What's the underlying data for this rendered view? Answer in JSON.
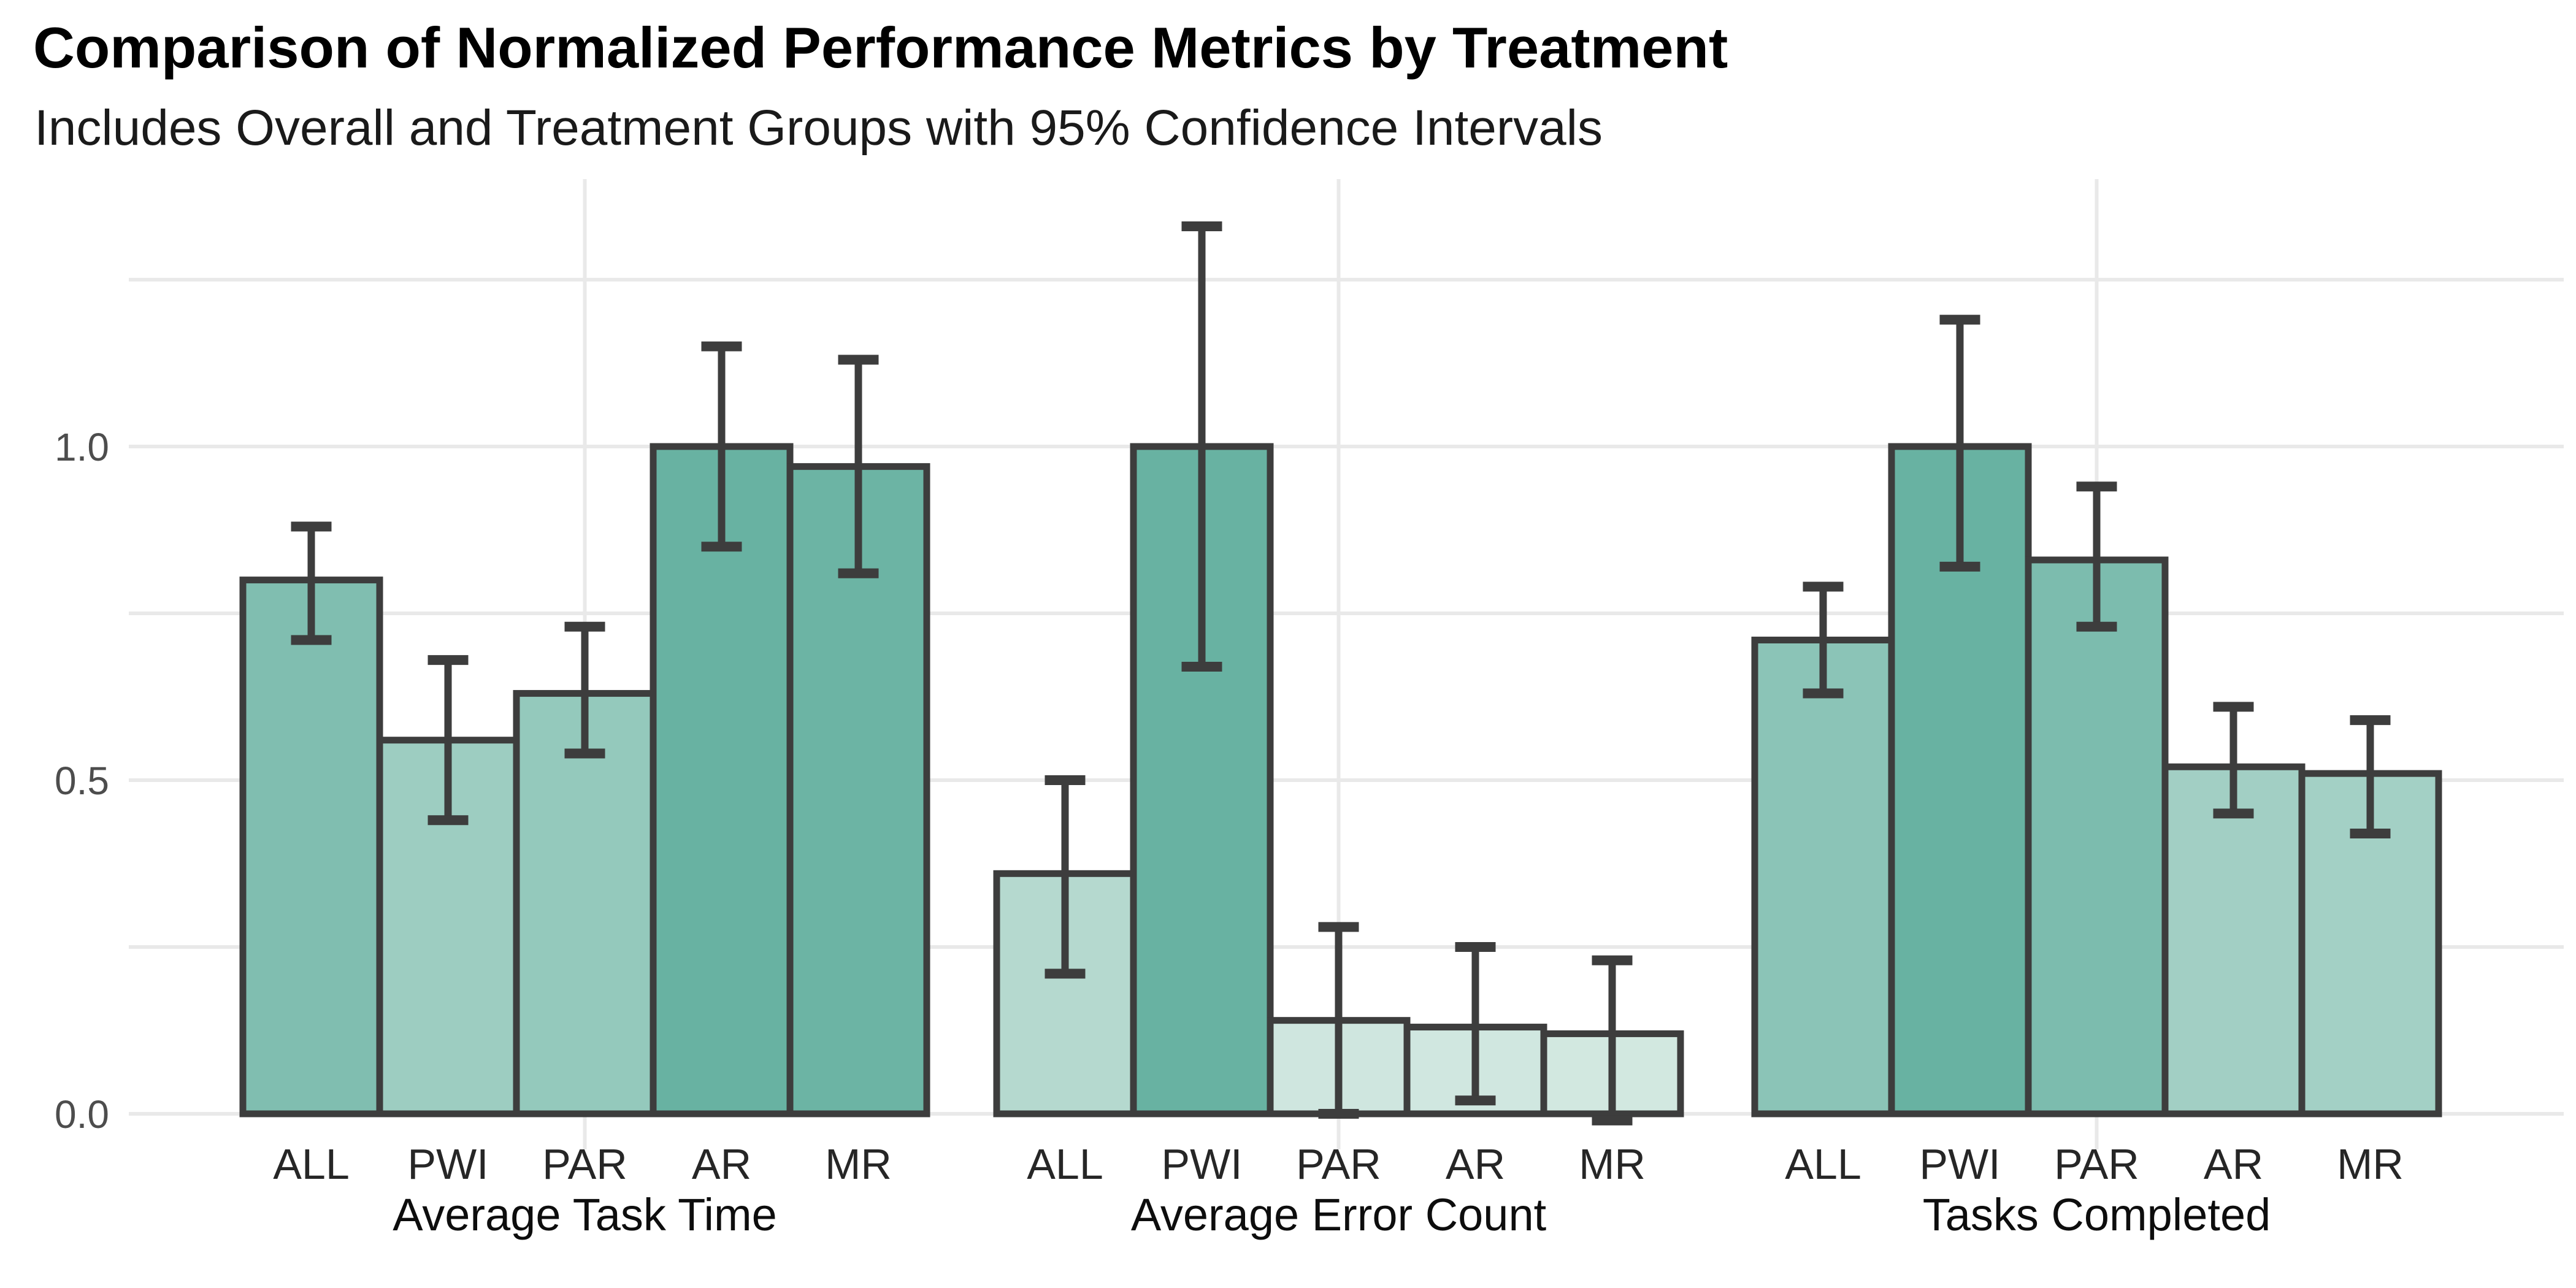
{
  "chart_data": {
    "type": "bar",
    "title": "Comparison of Normalized Performance Metrics by Treatment",
    "subtitle": "Includes Overall and Treatment Groups with 95% Confidence Intervals",
    "xlabel": "",
    "ylabel": "",
    "ylim": [
      0,
      1.4
    ],
    "yticks": [
      0,
      0.5,
      1
    ],
    "grid_step": 0.25,
    "grid": true,
    "legend": "none",
    "error_bars": "95% Confidence Intervals",
    "treatments": [
      "ALL",
      "PWI",
      "PAR",
      "AR",
      "MR"
    ],
    "group_categories": [
      "Average Task Time",
      "Average Error Count",
      "Tasks Completed"
    ],
    "groups": [
      {
        "label": "Average Task Time",
        "bars": [
          {
            "treatment": "ALL",
            "value": 0.8,
            "ci_low": 0.71,
            "ci_high": 0.88
          },
          {
            "treatment": "PWI",
            "value": 0.56,
            "ci_low": 0.44,
            "ci_high": 0.68
          },
          {
            "treatment": "PAR",
            "value": 0.63,
            "ci_low": 0.54,
            "ci_high": 0.73
          },
          {
            "treatment": "AR",
            "value": 1.0,
            "ci_low": 0.85,
            "ci_high": 1.15
          },
          {
            "treatment": "MR",
            "value": 0.97,
            "ci_low": 0.81,
            "ci_high": 1.13
          }
        ]
      },
      {
        "label": "Average Error Count",
        "bars": [
          {
            "treatment": "ALL",
            "value": 0.36,
            "ci_low": 0.21,
            "ci_high": 0.5
          },
          {
            "treatment": "PWI",
            "value": 1.0,
            "ci_low": 0.67,
            "ci_high": 1.33
          },
          {
            "treatment": "PAR",
            "value": 0.14,
            "ci_low": 0.0,
            "ci_high": 0.28
          },
          {
            "treatment": "AR",
            "value": 0.13,
            "ci_low": 0.02,
            "ci_high": 0.25
          },
          {
            "treatment": "MR",
            "value": 0.12,
            "ci_low": -0.01,
            "ci_high": 0.23
          }
        ]
      },
      {
        "label": "Tasks Completed",
        "bars": [
          {
            "treatment": "ALL",
            "value": 0.71,
            "ci_low": 0.63,
            "ci_high": 0.79
          },
          {
            "treatment": "PWI",
            "value": 1.0,
            "ci_low": 0.82,
            "ci_high": 1.19
          },
          {
            "treatment": "PAR",
            "value": 0.83,
            "ci_low": 0.73,
            "ci_high": 0.94
          },
          {
            "treatment": "AR",
            "value": 0.52,
            "ci_low": 0.45,
            "ci_high": 0.61
          },
          {
            "treatment": "MR",
            "value": 0.51,
            "ci_low": 0.42,
            "ci_high": 0.59
          }
        ]
      }
    ],
    "colors": {
      "background": "#ffffff",
      "fill_low": "#e0efe9",
      "fill_high": "#68b2a2",
      "bar_stroke": "#3d3d3d",
      "errorbar": "#3d3d3d",
      "gridline": "#e9e9e9",
      "y_axis_text": "#4d4d4d",
      "x_axis_text": "#262626",
      "title_text": "#000000"
    }
  }
}
